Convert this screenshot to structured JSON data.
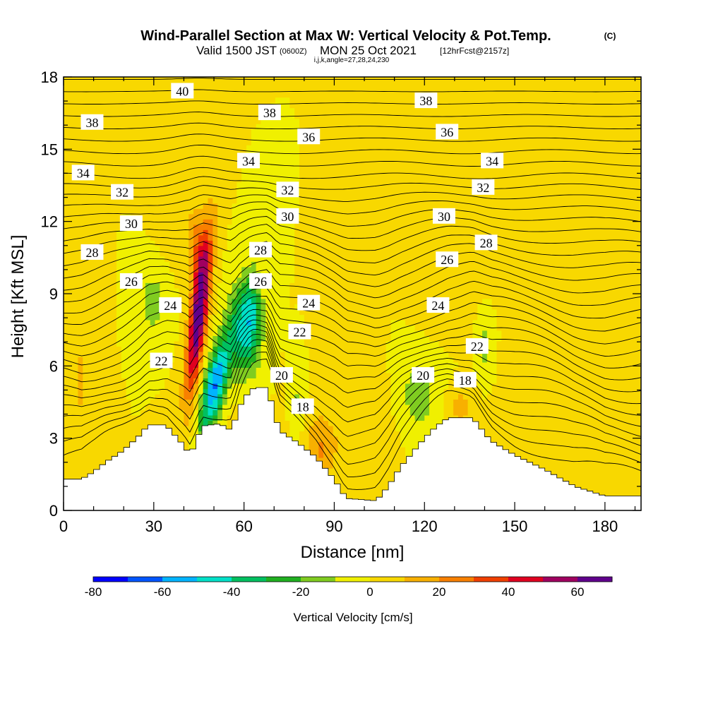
{
  "chart_data": {
    "type": "heatmap",
    "title": "Wind-Parallel Section at Max W: Vertical Velocity & Pot.Temp.",
    "title_unit": "(C)",
    "subtitle_a": "Valid 1500 JST",
    "subtitle_b": "(0600Z)",
    "subtitle_c": "MON 25 Oct 2021",
    "subtitle_d": "[12hrFcst@2157z]",
    "subtitle_line2": "i,j,k,angle=27,28,24,230",
    "xlabel": "Distance [nm]",
    "ylabel": "Height [Kft MSL]",
    "xlim": [
      0,
      192
    ],
    "ylim": [
      0,
      18
    ],
    "x_ticks": [
      "0",
      "30",
      "60",
      "90",
      "120",
      "150",
      "180"
    ],
    "x_tick_values": [
      0,
      30,
      60,
      90,
      120,
      150,
      180
    ],
    "y_ticks": [
      "0",
      "3",
      "6",
      "9",
      "12",
      "15",
      "18"
    ],
    "y_tick_values": [
      0,
      3,
      6,
      9,
      12,
      15,
      18
    ],
    "colorbar": {
      "label": "Vertical Velocity [cm/s]",
      "ticks": [
        "-80",
        "-60",
        "-40",
        "-20",
        "0",
        "20",
        "40",
        "60"
      ],
      "tick_values": [
        -80,
        -60,
        -40,
        -20,
        0,
        20,
        40,
        60
      ],
      "range": [
        -80,
        70
      ],
      "step": 10,
      "colors": [
        "#0000ff",
        "#0055ff",
        "#00b4ff",
        "#00e0c8",
        "#00c060",
        "#20b020",
        "#80cc20",
        "#f0f000",
        "#f8d800",
        "#f8b000",
        "#f88000",
        "#f04000",
        "#e00020",
        "#a00060",
        "#60008c"
      ]
    },
    "contour_labels": [
      {
        "text": "40",
        "x": 39.5,
        "y": 17.4
      },
      {
        "text": "38",
        "x": 9.5,
        "y": 16.1
      },
      {
        "text": "38",
        "x": 68.5,
        "y": 16.5
      },
      {
        "text": "38",
        "x": 120.5,
        "y": 17.0
      },
      {
        "text": "36",
        "x": 81.5,
        "y": 15.5
      },
      {
        "text": "36",
        "x": 127.5,
        "y": 15.7
      },
      {
        "text": "34",
        "x": 6.5,
        "y": 14.0
      },
      {
        "text": "34",
        "x": 61.5,
        "y": 14.5
      },
      {
        "text": "34",
        "x": 142.5,
        "y": 14.5
      },
      {
        "text": "32",
        "x": 19.5,
        "y": 13.2
      },
      {
        "text": "32",
        "x": 74.5,
        "y": 13.3
      },
      {
        "text": "32",
        "x": 139.5,
        "y": 13.4
      },
      {
        "text": "30",
        "x": 22.5,
        "y": 11.9
      },
      {
        "text": "30",
        "x": 74.5,
        "y": 12.2
      },
      {
        "text": "30",
        "x": 126.5,
        "y": 12.2
      },
      {
        "text": "28",
        "x": 9.5,
        "y": 10.7
      },
      {
        "text": "28",
        "x": 65.5,
        "y": 10.8
      },
      {
        "text": "28",
        "x": 140.5,
        "y": 11.1
      },
      {
        "text": "26",
        "x": 22.5,
        "y": 9.5
      },
      {
        "text": "26",
        "x": 65.5,
        "y": 9.5
      },
      {
        "text": "26",
        "x": 127.5,
        "y": 10.4
      },
      {
        "text": "24",
        "x": 35.5,
        "y": 8.5
      },
      {
        "text": "24",
        "x": 81.5,
        "y": 8.6
      },
      {
        "text": "24",
        "x": 124.5,
        "y": 8.5
      },
      {
        "text": "22",
        "x": 32.5,
        "y": 6.2
      },
      {
        "text": "22",
        "x": 78.5,
        "y": 7.4
      },
      {
        "text": "22",
        "x": 137.5,
        "y": 6.8
      },
      {
        "text": "20",
        "x": 72.5,
        "y": 5.6
      },
      {
        "text": "20",
        "x": 119.5,
        "y": 5.6
      },
      {
        "text": "18",
        "x": 79.5,
        "y": 4.3
      },
      {
        "text": "18",
        "x": 133.5,
        "y": 5.4
      }
    ]
  },
  "colors": {
    "background_field": "#f0f000",
    "terrain": "#ffffff",
    "contour": "#000000"
  }
}
